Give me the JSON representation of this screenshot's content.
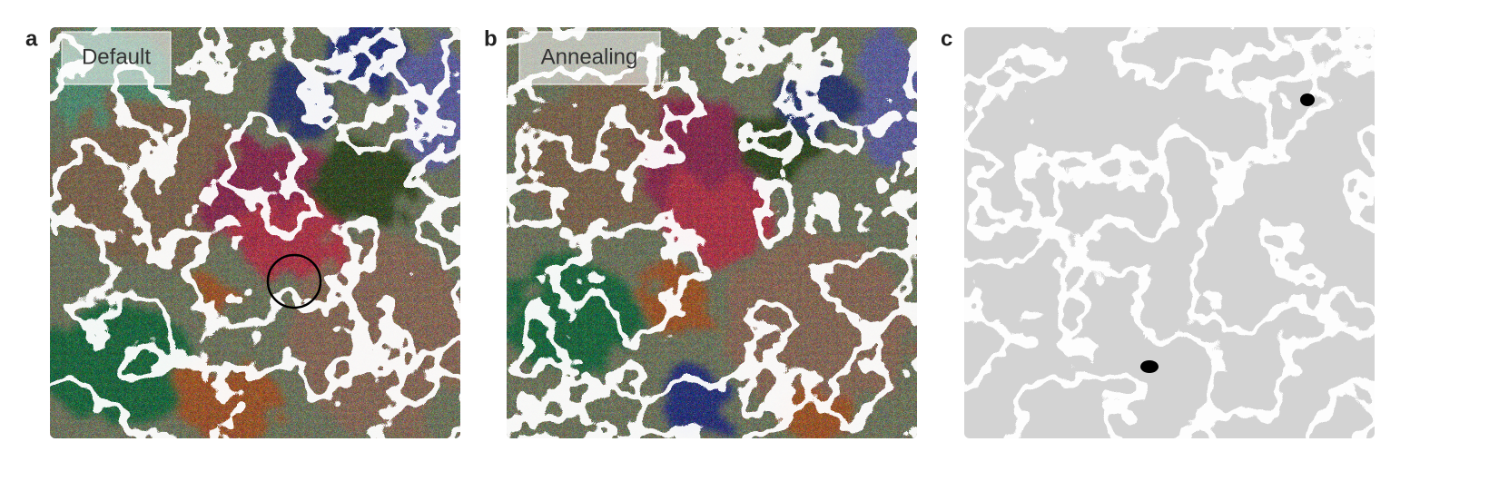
{
  "panels": [
    {
      "letter": "a",
      "label": "Default"
    },
    {
      "letter": "b",
      "label": "Annealing"
    },
    {
      "letter": "c"
    }
  ]
}
